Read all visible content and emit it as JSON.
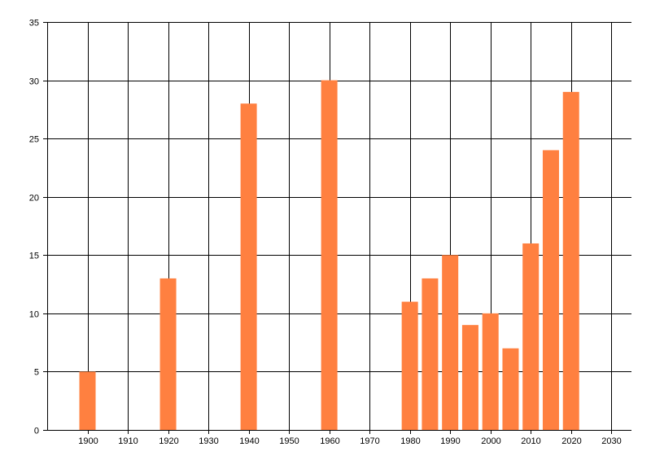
{
  "chart_data": {
    "type": "bar",
    "title": "",
    "xlabel": "",
    "ylabel": "",
    "x": [
      1900,
      1920,
      1940,
      1960,
      1980,
      1985,
      1990,
      1995,
      2000,
      2005,
      2010,
      2015,
      2020
    ],
    "values": [
      5,
      13,
      28,
      30,
      11,
      13,
      15,
      9,
      10,
      7,
      16,
      24,
      29
    ],
    "xlim": [
      1890,
      2035
    ],
    "ylim": [
      0,
      35
    ],
    "xticks": [
      1900,
      1910,
      1920,
      1930,
      1940,
      1950,
      1960,
      1970,
      1980,
      1990,
      2000,
      2010,
      2020,
      2030
    ],
    "yticks": [
      0,
      5,
      10,
      15,
      20,
      25,
      30,
      35
    ],
    "grid": true,
    "legend": "none",
    "bar_color": "#FF8040",
    "grid_color": "#000000"
  }
}
